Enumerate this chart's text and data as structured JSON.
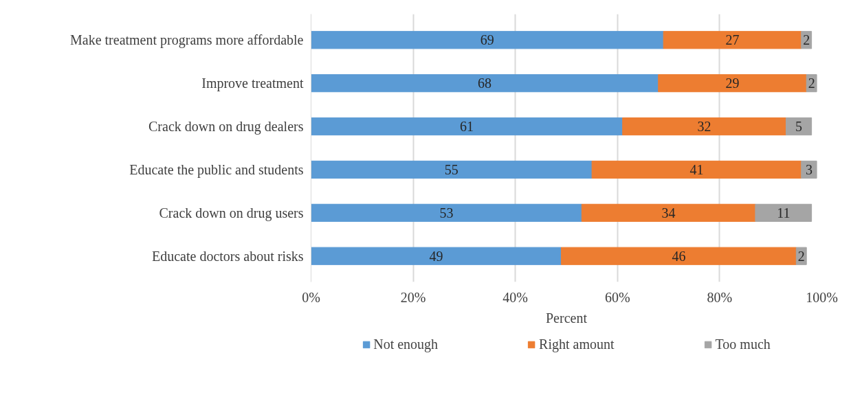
{
  "chart_data": {
    "type": "bar",
    "orientation": "horizontal",
    "stacked": true,
    "xlabel": "Percent",
    "categories": [
      "Make treatment programs more affordable",
      "Improve treatment",
      "Crack down on drug dealers",
      "Educate the public and students",
      "Crack down on drug users",
      "Educate doctors about risks"
    ],
    "series": [
      {
        "name": "Not enough",
        "color": "#5b9bd5",
        "values": [
          69,
          68,
          61,
          55,
          53,
          49
        ]
      },
      {
        "name": "Right amount",
        "color": "#ed7d31",
        "values": [
          27,
          29,
          32,
          41,
          34,
          46
        ]
      },
      {
        "name": "Too much",
        "color": "#a5a5a5",
        "values": [
          2,
          2,
          5,
          3,
          11,
          2
        ]
      }
    ],
    "data_labels": true,
    "xlim": [
      0,
      100
    ],
    "xticks": [
      {
        "value": 0,
        "label": "0%"
      },
      {
        "value": 20,
        "label": "20%"
      },
      {
        "value": 40,
        "label": "40%"
      },
      {
        "value": 60,
        "label": "60%"
      },
      {
        "value": 80,
        "label": "80%"
      },
      {
        "value": 100,
        "label": "100%"
      }
    ],
    "grid": "x",
    "legend": "bottom"
  }
}
